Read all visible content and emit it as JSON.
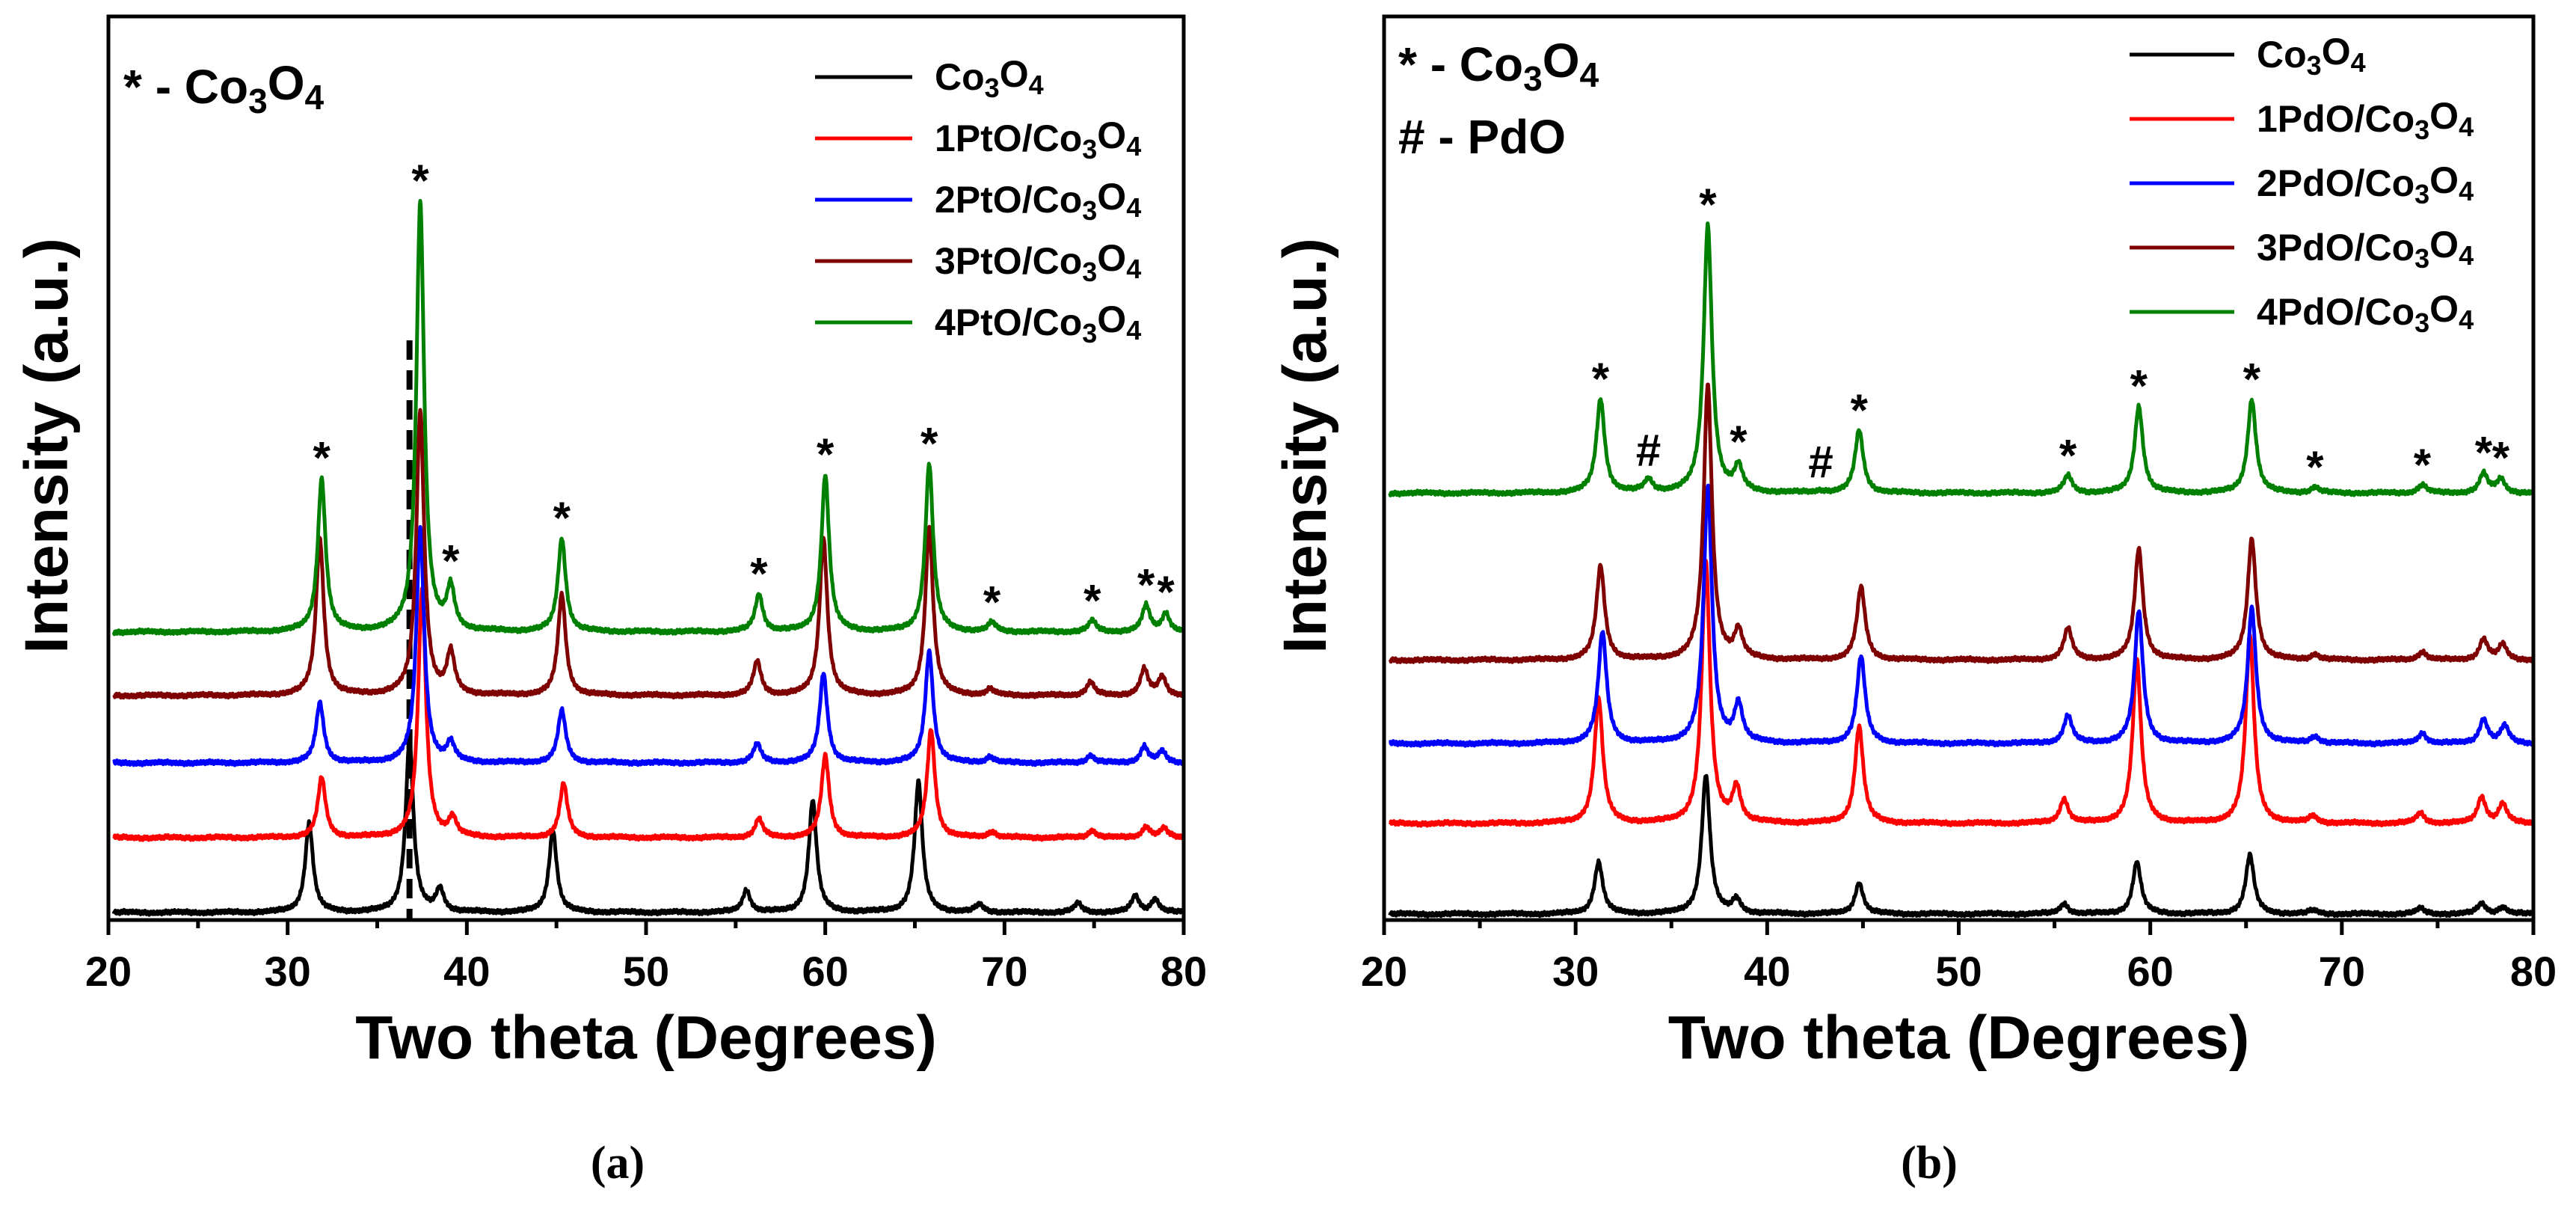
{
  "chart_data": [
    {
      "id": "a",
      "type": "line",
      "caption": "(a)",
      "xlabel": "Two theta (Degrees)",
      "ylabel": "Intensity (a.u.)",
      "xlim": [
        20,
        80
      ],
      "xticks": [
        20,
        30,
        40,
        50,
        60,
        70,
        80
      ],
      "grid": false,
      "legend_position": "top-right",
      "annotations": [
        {
          "marker": "*",
          "label": "Co3O4"
        }
      ],
      "reference_line_x": 36.8,
      "series": [
        {
          "name": "Co3O4",
          "color": "#000000",
          "offset": 0,
          "peaks": [
            [
              31.2,
              120
            ],
            [
              36.8,
              230
            ],
            [
              38.5,
              30
            ],
            [
              44.8,
              110
            ],
            [
              55.6,
              30
            ],
            [
              59.3,
              150
            ],
            [
              65.2,
              175
            ],
            [
              68.6,
              10
            ],
            [
              74.1,
              12
            ],
            [
              77.3,
              22
            ],
            [
              78.4,
              18
            ]
          ]
        },
        {
          "name": "1PtO/Co3O4",
          "color": "#ff0000",
          "offset": 100,
          "peaks": [
            [
              31.9,
              80
            ],
            [
              37.5,
              330
            ],
            [
              39.2,
              25
            ],
            [
              45.4,
              72
            ],
            [
              56.3,
              25
            ],
            [
              60.0,
              110
            ],
            [
              65.9,
              145
            ],
            [
              69.3,
              8
            ],
            [
              74.9,
              10
            ],
            [
              77.9,
              15
            ],
            [
              78.9,
              12
            ]
          ]
        },
        {
          "name": "2PtO/Co3O4",
          "color": "#0000ff",
          "offset": 200,
          "peaks": [
            [
              31.8,
              80
            ],
            [
              37.4,
              315
            ],
            [
              39.1,
              25
            ],
            [
              45.3,
              70
            ],
            [
              56.2,
              25
            ],
            [
              59.9,
              120
            ],
            [
              65.8,
              150
            ],
            [
              69.2,
              8
            ],
            [
              74.8,
              10
            ],
            [
              77.8,
              22
            ],
            [
              78.8,
              15
            ]
          ]
        },
        {
          "name": "3PtO/Co3O4",
          "color": "#7f0000",
          "offset": 290,
          "peaks": [
            [
              31.8,
              210
            ],
            [
              37.4,
              380
            ],
            [
              39.1,
              55
            ],
            [
              45.3,
              135
            ],
            [
              56.2,
              45
            ],
            [
              59.9,
              210
            ],
            [
              65.8,
              225
            ],
            [
              69.2,
              8
            ],
            [
              74.8,
              18
            ],
            [
              77.8,
              35
            ],
            [
              78.8,
              25
            ]
          ]
        },
        {
          "name": "4PtO/Co3O4",
          "color": "#008000",
          "offset": 375,
          "peaks": [
            [
              31.9,
              205
            ],
            [
              37.4,
              575
            ],
            [
              39.1,
              55
            ],
            [
              45.3,
              125
            ],
            [
              56.3,
              50
            ],
            [
              60.0,
              210
            ],
            [
              65.8,
              225
            ],
            [
              69.3,
              12
            ],
            [
              74.9,
              15
            ],
            [
              77.9,
              35
            ],
            [
              79.0,
              25
            ]
          ]
        }
      ]
    },
    {
      "id": "b",
      "type": "line",
      "caption": "(b)",
      "xlabel": "Two theta (Degrees)",
      "ylabel": "Intensity (a.u.)",
      "xlim": [
        20,
        80
      ],
      "xticks": [
        20,
        30,
        40,
        50,
        60,
        70,
        80
      ],
      "grid": false,
      "legend_position": "top-right",
      "annotations": [
        {
          "marker": "*",
          "label": "Co3O4"
        },
        {
          "marker": "#",
          "label": "PdO"
        }
      ],
      "series": [
        {
          "name": "Co3O4",
          "color": "#000000",
          "offset": 0,
          "peaks": [
            [
              31.2,
              75
            ],
            [
              36.8,
              200
            ],
            [
              38.4,
              20
            ],
            [
              44.8,
              45
            ],
            [
              55.5,
              15
            ],
            [
              59.3,
              75
            ],
            [
              65.2,
              85
            ],
            [
              68.5,
              5
            ],
            [
              74.1,
              8
            ],
            [
              77.3,
              15
            ],
            [
              78.4,
              10
            ]
          ]
        },
        {
          "name": "1PdO/Co3O4",
          "color": "#ff0000",
          "offset": 130,
          "peaks": [
            [
              31.2,
              180
            ],
            [
              36.8,
              375
            ],
            [
              38.4,
              50
            ],
            [
              44.8,
              140
            ],
            [
              55.5,
              35
            ],
            [
              59.3,
              235
            ],
            [
              65.2,
              270
            ],
            [
              68.5,
              10
            ],
            [
              74.1,
              15
            ],
            [
              77.3,
              38
            ],
            [
              78.4,
              28
            ]
          ]
        },
        {
          "name": "2PdO/Co3O4",
          "color": "#0000ff",
          "offset": 245,
          "peaks": [
            [
              31.4,
              160
            ],
            [
              36.9,
              370
            ],
            [
              38.5,
              55
            ],
            [
              44.9,
              125
            ],
            [
              55.7,
              40
            ],
            [
              59.4,
              190
            ],
            [
              65.3,
              195
            ],
            [
              68.6,
              10
            ],
            [
              74.2,
              15
            ],
            [
              77.4,
              35
            ],
            [
              78.5,
              25
            ]
          ]
        },
        {
          "name": "3PdO/Co3O4",
          "color": "#7f0000",
          "offset": 365,
          "peaks": [
            [
              31.3,
              135
            ],
            [
              36.9,
              395
            ],
            [
              38.5,
              40
            ],
            [
              44.9,
              105
            ],
            [
              55.7,
              45
            ],
            [
              59.4,
              160
            ],
            [
              65.3,
              175
            ],
            [
              68.6,
              8
            ],
            [
              74.2,
              12
            ],
            [
              77.4,
              30
            ],
            [
              78.4,
              22
            ]
          ]
        },
        {
          "name": "4PdO/Co3O4",
          "color": "#008000",
          "offset": 605,
          "peaks": [
            [
              31.3,
              135
            ],
            [
              33.8,
              18
            ],
            [
              36.9,
              385
            ],
            [
              38.5,
              35
            ],
            [
              42.8,
              3
            ],
            [
              44.8,
              90
            ],
            [
              55.7,
              25
            ],
            [
              59.4,
              125
            ],
            [
              65.3,
              135
            ],
            [
              68.6,
              8
            ],
            [
              74.2,
              12
            ],
            [
              77.4,
              28
            ],
            [
              78.3,
              20
            ]
          ]
        }
      ]
    }
  ]
}
